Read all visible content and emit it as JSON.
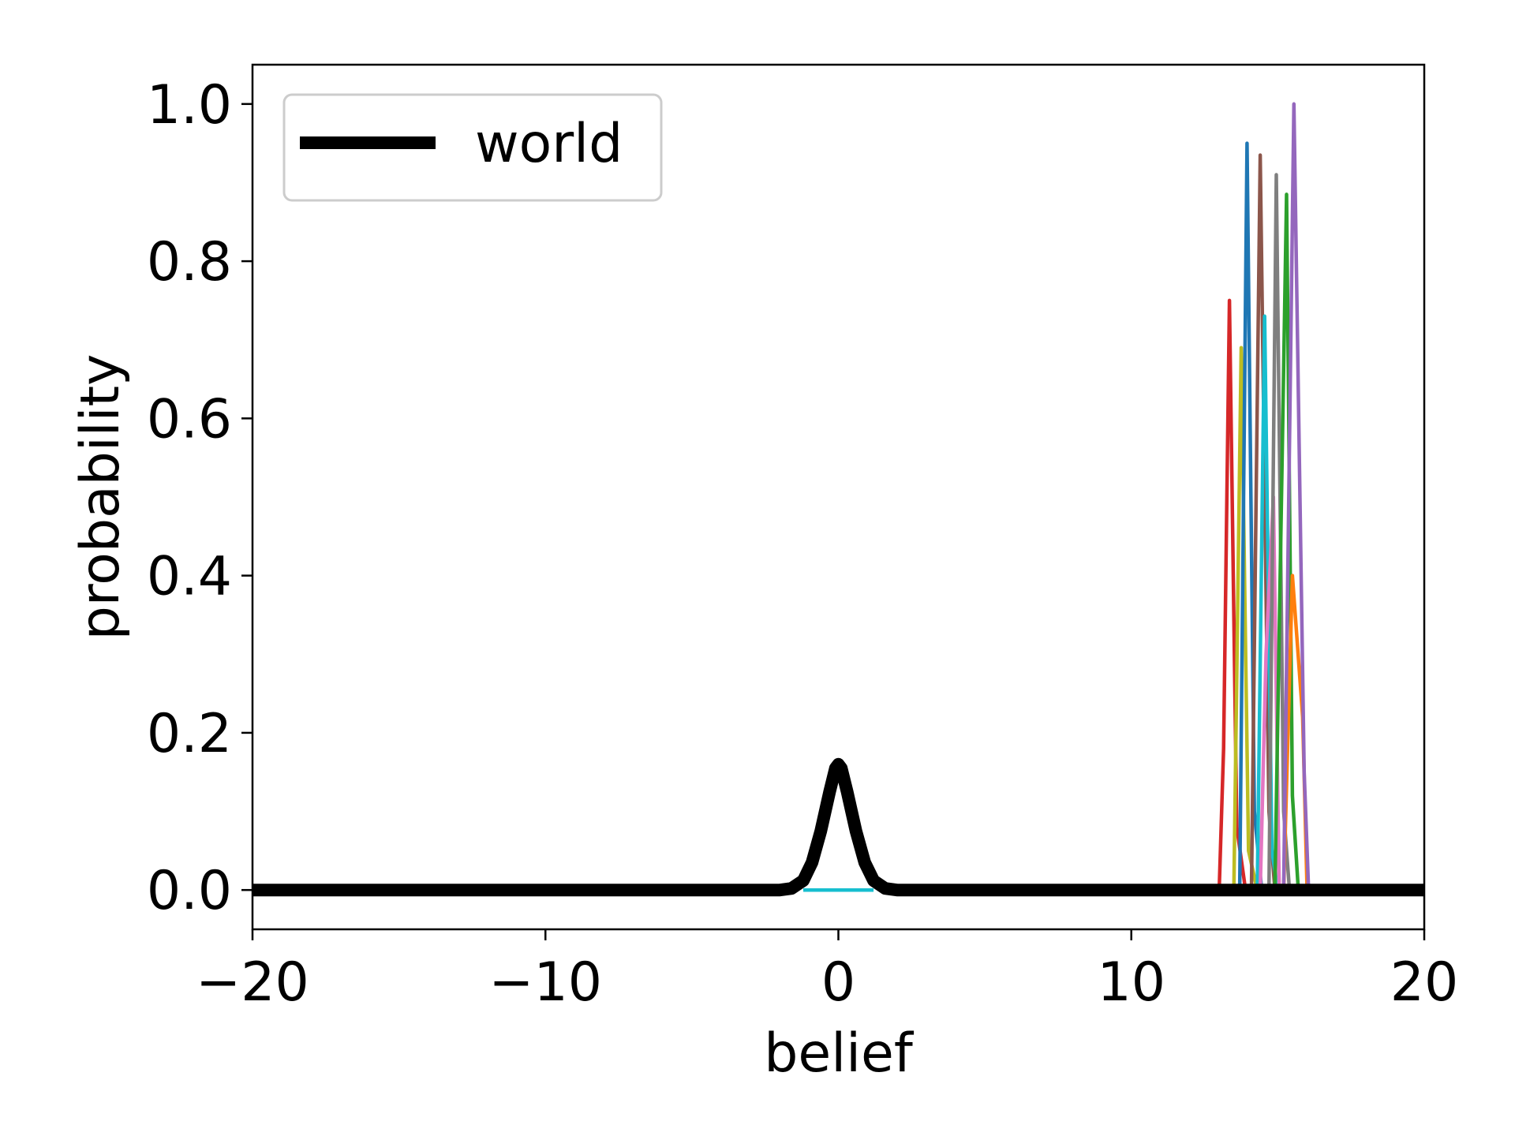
{
  "chart_data": {
    "type": "line",
    "title": "",
    "xlabel": "belief",
    "ylabel": "probability",
    "xlim": [
      -20,
      20
    ],
    "ylim": [
      -0.05,
      1.05
    ],
    "x_ticks": [
      -20,
      -10,
      0,
      10,
      20
    ],
    "x_tick_labels": [
      "−20",
      "−10",
      "0",
      "10",
      "20"
    ],
    "y_ticks": [
      0.0,
      0.2,
      0.4,
      0.6,
      0.8,
      1.0
    ],
    "y_tick_labels": [
      "0.0",
      "0.2",
      "0.4",
      "0.6",
      "0.8",
      "1.0"
    ],
    "grid": false,
    "legend": {
      "placement": "upper-left",
      "entries": [
        "world"
      ]
    },
    "series": [
      {
        "name": "world",
        "color": "#000000",
        "highlight": true,
        "x": [
          -20,
          -2,
          -1.6,
          -1.2,
          -0.9,
          -0.6,
          -0.3,
          -0.1,
          0,
          0.1,
          0.3,
          0.6,
          0.9,
          1.2,
          1.6,
          2,
          20
        ],
        "y": [
          0,
          0,
          0.002,
          0.012,
          0.035,
          0.075,
          0.125,
          0.155,
          0.16,
          0.155,
          0.125,
          0.075,
          0.035,
          0.012,
          0.002,
          0,
          0
        ]
      },
      {
        "color": "#17becf",
        "x": [
          -1.2,
          1.2
        ],
        "y": [
          0,
          0
        ]
      },
      {
        "color": "#d62728",
        "x": [
          13.0,
          13.15,
          13.35,
          13.6,
          13.9
        ],
        "y": [
          0,
          0.18,
          0.75,
          0.08,
          0
        ]
      },
      {
        "color": "#bcbd22",
        "x": [
          13.5,
          13.75,
          14.0,
          14.3
        ],
        "y": [
          0,
          0.69,
          0.05,
          0
        ]
      },
      {
        "color": "#1f77b4",
        "x": [
          13.7,
          13.95,
          14.2,
          14.45
        ],
        "y": [
          0,
          0.95,
          0.1,
          0
        ]
      },
      {
        "color": "#8c564b",
        "x": [
          14.1,
          14.4,
          14.7,
          14.9
        ],
        "y": [
          0,
          0.935,
          0.1,
          0
        ]
      },
      {
        "color": "#17becf",
        "x": [
          14.3,
          14.55,
          14.8,
          15.0
        ],
        "y": [
          0,
          0.73,
          0.05,
          0
        ]
      },
      {
        "color": "#e377c2",
        "x": [
          14.4,
          14.6,
          14.85,
          15.05
        ],
        "y": [
          0,
          0.3,
          0.5,
          0
        ]
      },
      {
        "color": "#7f7f7f",
        "x": [
          14.7,
          14.95,
          15.2,
          15.4
        ],
        "y": [
          0,
          0.91,
          0.1,
          0
        ]
      },
      {
        "color": "#2ca02c",
        "x": [
          14.9,
          15.3,
          15.5,
          15.7
        ],
        "y": [
          0,
          0.885,
          0.12,
          0
        ]
      },
      {
        "color": "#ff7f0e",
        "x": [
          15.2,
          15.5,
          15.85,
          16.0
        ],
        "y": [
          0,
          0.4,
          0.22,
          0
        ]
      },
      {
        "color": "#9467bd",
        "x": [
          15.2,
          15.55,
          15.9,
          16.05
        ],
        "y": [
          0,
          1.0,
          0.15,
          0
        ]
      }
    ]
  }
}
